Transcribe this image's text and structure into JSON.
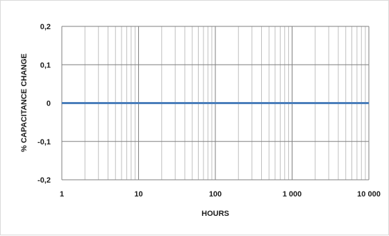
{
  "chart_data": {
    "type": "line",
    "title": "",
    "xlabel": "HOURS",
    "ylabel": "% CAPACITANCE CHANGE",
    "x_scale": "log",
    "xlim": [
      1,
      10000
    ],
    "ylim": [
      -0.2,
      0.2
    ],
    "grid": true,
    "legend": "none",
    "x_tick_labels": [
      "1",
      "10",
      "100",
      "1 000",
      "10 000"
    ],
    "x_tick_values": [
      1,
      10,
      100,
      1000,
      10000
    ],
    "y_tick_labels": [
      "0,2",
      "0,1",
      "0",
      "-0,1",
      "-0,2"
    ],
    "y_tick_values": [
      0.2,
      0.1,
      0,
      -0.1,
      -0.2
    ],
    "series": [
      {
        "x": [
          1,
          10000
        ],
        "y": [
          0,
          0
        ]
      }
    ],
    "colors": {
      "series": "#4a7ebb",
      "grid": "#bfbfbf",
      "major_grid": "#7f7f7f"
    }
  }
}
